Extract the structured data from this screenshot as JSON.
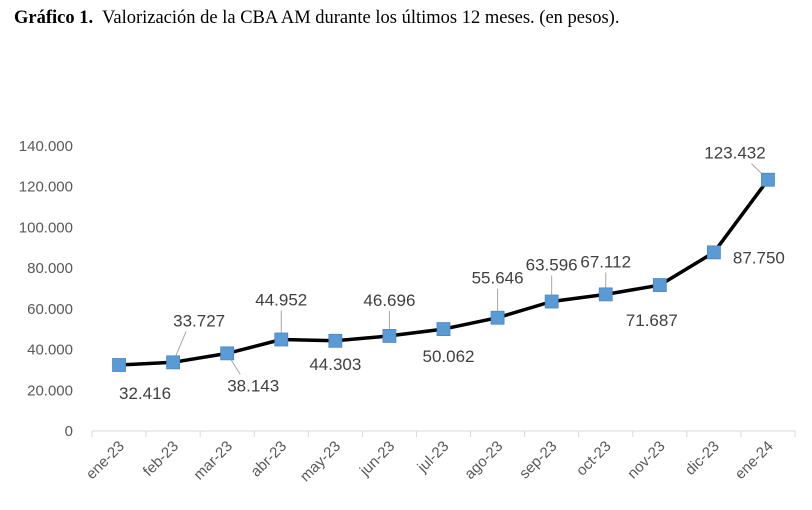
{
  "caption": {
    "prefix": "Gráfico 1.",
    "text": "Valorización de la CBA AM durante los últimos 12 meses. (en pesos)."
  },
  "chart_data": {
    "type": "line",
    "categories": [
      "ene-23",
      "feb-23",
      "mar-23",
      "abr-23",
      "may-23",
      "jun-23",
      "jul-23",
      "ago-23",
      "sep-23",
      "oct-23",
      "nov-23",
      "dic-23",
      "ene-24"
    ],
    "values": [
      32416,
      33727,
      38143,
      44952,
      44303,
      46696,
      50062,
      55646,
      63596,
      67112,
      71687,
      87750,
      123432
    ],
    "data_labels": [
      "32.416",
      "33.727",
      "38.143",
      "44.952",
      "44.303",
      "46.696",
      "50.062",
      "55.646",
      "63.596",
      "67.112",
      "71.687",
      "87.750",
      "123.432"
    ],
    "y_ticks": [
      0,
      20000,
      40000,
      60000,
      80000,
      100000,
      120000,
      140000
    ],
    "y_tick_labels": [
      "0",
      "20.000",
      "40.000",
      "60.000",
      "80.000",
      "100.000",
      "120.000",
      "140.000"
    ],
    "ylim": [
      0,
      140000
    ],
    "grid": false,
    "line_color": "#000000",
    "marker_color": "#5B9BD5",
    "marker": "square",
    "xlabel": "",
    "ylabel": ""
  }
}
